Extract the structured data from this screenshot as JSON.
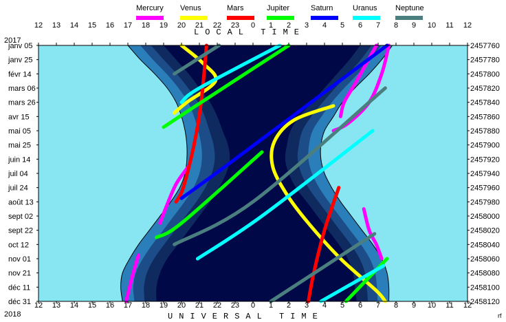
{
  "chart_data": {
    "type": "area",
    "title": "",
    "year_start": "2017",
    "year_end": "2018",
    "top_axis_label": "LOCAL TIME",
    "bottom_axis_label": "UNIVERSAL TIME",
    "hour_ticks": [
      "12",
      "13",
      "14",
      "15",
      "16",
      "17",
      "18",
      "19",
      "20",
      "21",
      "22",
      "23",
      "0",
      "1",
      "2",
      "3",
      "4",
      "5",
      "6",
      "7",
      "8",
      "9",
      "10",
      "11",
      "12"
    ],
    "date_labels": [
      "janv 05",
      "janv 25",
      "févr 14",
      "mars 06",
      "mars 26",
      "avr 15",
      "mai 05",
      "mai 25",
      "juin 14",
      "juil 04",
      "juil 24",
      "août 13",
      "sept 02",
      "sept 22",
      "oct 12",
      "nov 01",
      "nov 21",
      "déc 11",
      "déc 31"
    ],
    "julian_day_labels": [
      "2457760",
      "2457780",
      "2457800",
      "2457820",
      "2457840",
      "2457860",
      "2457880",
      "2457900",
      "2457920",
      "2457940",
      "2457960",
      "2457980",
      "2458000",
      "2458020",
      "2458040",
      "2458060",
      "2458080",
      "2458100",
      "2458120"
    ],
    "signature": "rf",
    "legend_position": "top",
    "colors": {
      "day": "#88e6f2",
      "twilight_outer": "#2a7fba",
      "twilight_mid": "#1d4d88",
      "twilight_inner": "#0f2a5e",
      "night": "#000848"
    },
    "night_boundaries": {
      "description_units": "hours since noon (local), day index from Jan 05 2017",
      "days": [
        0,
        20,
        40,
        60,
        80,
        100,
        120,
        140,
        160,
        180,
        200,
        220,
        240,
        260,
        280,
        300,
        320,
        340,
        360
      ],
      "outer_start": [
        5.0,
        5.7,
        6.5,
        7.2,
        7.7,
        8.0,
        8.2,
        8.3,
        8.3,
        8.2,
        7.9,
        7.4,
        6.8,
        6.2,
        5.6,
        5.1,
        4.7,
        4.6,
        4.7
      ],
      "outer_end": [
        19.8,
        19.2,
        18.5,
        17.7,
        17.0,
        16.5,
        16.0,
        15.8,
        15.8,
        16.0,
        16.4,
        16.9,
        17.5,
        18.1,
        18.7,
        19.2,
        19.5,
        19.6,
        19.6
      ],
      "inner_start": [
        7.0,
        7.7,
        8.4,
        9.0,
        9.6,
        10.0,
        10.3,
        10.6,
        10.7,
        10.5,
        10.1,
        9.6,
        9.0,
        8.4,
        7.8,
        7.2,
        6.8,
        6.6,
        6.6
      ],
      "inner_end": [
        18.0,
        17.4,
        16.7,
        16.0,
        15.3,
        14.6,
        14.1,
        13.9,
        13.8,
        14.0,
        14.4,
        15.0,
        15.6,
        16.2,
        16.8,
        17.3,
        17.6,
        17.7,
        17.8
      ]
    },
    "series": [
      {
        "name": "Mercury",
        "color": "#ff00ff"
      },
      {
        "name": "Venus",
        "color": "#ffff00"
      },
      {
        "name": "Mars",
        "color": "#ff0000"
      },
      {
        "name": "Jupiter",
        "color": "#00ff00"
      },
      {
        "name": "Saturn",
        "color": "#0000ff"
      },
      {
        "name": "Uranus",
        "color": "#00ffff"
      },
      {
        "name": "Neptune",
        "color": "#4b7f7f"
      }
    ],
    "planet_tracks": {
      "units": "x = local hour offset from 12h (0..24), y = day index (0..360)",
      "Mercury": [
        {
          "side": "evening",
          "points": [
            [
              19.6,
              0
            ],
            [
              19.2,
              40
            ],
            [
              18.5,
              80
            ],
            [
              17.3,
              110
            ],
            [
              16.5,
              120
            ]
          ]
        },
        {
          "side": "morning",
          "points": [
            [
              18.9,
              0
            ],
            [
              17.8,
              50
            ],
            [
              17.1,
              80
            ],
            [
              16.9,
              100
            ]
          ]
        },
        {
          "side": "evening2",
          "points": [
            [
              8.4,
              170
            ],
            [
              7.7,
              195
            ],
            [
              7.1,
              230
            ],
            [
              6.8,
              250
            ]
          ]
        },
        {
          "side": "morning2",
          "points": [
            [
              18.2,
              230
            ],
            [
              18.5,
              260
            ],
            [
              18.9,
              280
            ],
            [
              19.2,
              300
            ]
          ]
        },
        {
          "side": "evening3",
          "points": [
            [
              5.6,
              295
            ],
            [
              5.3,
              320
            ],
            [
              5.1,
              340
            ],
            [
              4.9,
              360
            ]
          ]
        }
      ],
      "Venus": [
        {
          "side": "evening",
          "points": [
            [
              8.0,
              0
            ],
            [
              9.2,
              25
            ],
            [
              9.9,
              50
            ],
            [
              8.3,
              80
            ],
            [
              7.6,
              95
            ]
          ]
        },
        {
          "side": "morning",
          "points": [
            [
              16.5,
              85
            ],
            [
              14.3,
              105
            ],
            [
              13.2,
              135
            ],
            [
              13.1,
              170
            ],
            [
              13.9,
              210
            ],
            [
              15.1,
              250
            ],
            [
              16.9,
              300
            ],
            [
              18.9,
              345
            ],
            [
              19.4,
              360
            ]
          ]
        }
      ],
      "Mars": [
        {
          "side": "evening",
          "points": [
            [
              9.4,
              0
            ],
            [
              9.1,
              80
            ],
            [
              8.7,
              140
            ],
            [
              8.1,
              200
            ],
            [
              7.7,
              220
            ]
          ]
        },
        {
          "side": "morning",
          "points": [
            [
              16.8,
              200
            ],
            [
              16.0,
              260
            ],
            [
              15.4,
              320
            ],
            [
              15.1,
              360
            ]
          ]
        }
      ],
      "Jupiter": [
        {
          "side": "night",
          "points": [
            [
              14.0,
              0
            ],
            [
              8.5,
              90
            ],
            [
              7.0,
              115
            ]
          ]
        },
        {
          "side": "night2",
          "points": [
            [
              12.5,
              150
            ],
            [
              8.0,
              250
            ],
            [
              6.6,
              270
            ]
          ]
        },
        {
          "side": "morning",
          "points": [
            [
              19.5,
              300
            ],
            [
              17.2,
              360
            ]
          ]
        }
      ],
      "Saturn": [
        {
          "side": "night",
          "points": [
            [
              19.5,
              0
            ],
            [
              11.0,
              160
            ],
            [
              8.0,
              215
            ]
          ]
        }
      ],
      "Uranus": [
        {
          "side": "night",
          "points": [
            [
              13.5,
              0
            ],
            [
              9.0,
              60
            ],
            [
              8.0,
              80
            ]
          ]
        },
        {
          "side": "night2",
          "points": [
            [
              18.7,
              120
            ],
            [
              12.5,
              240
            ],
            [
              8.9,
              300
            ]
          ]
        },
        {
          "side": "morning",
          "points": [
            [
              19.3,
              310
            ],
            [
              15.8,
              360
            ]
          ]
        }
      ],
      "Neptune": [
        {
          "side": "night",
          "points": [
            [
              10.1,
              0
            ],
            [
              7.6,
              40
            ]
          ]
        },
        {
          "side": "night2",
          "points": [
            [
              19.4,
              60
            ],
            [
              12.0,
              220
            ],
            [
              7.6,
              280
            ]
          ]
        },
        {
          "side": "morning",
          "points": [
            [
              18.8,
              265
            ],
            [
              13.0,
              360
            ]
          ]
        }
      ]
    }
  }
}
